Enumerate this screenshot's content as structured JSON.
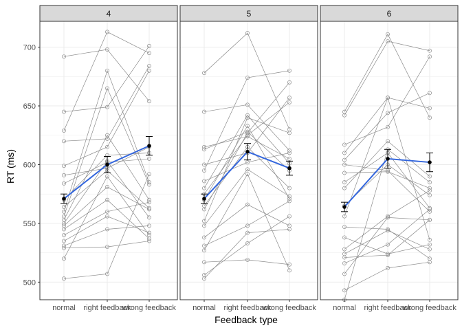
{
  "chart_data": {
    "type": "line",
    "facet_by": "number of items",
    "xlabel": "Feedback type",
    "ylabel": "RT (ms)",
    "categories": [
      "normal",
      "right feedback",
      "wrong feedback"
    ],
    "ylim": [
      485,
      722
    ],
    "yticks": [
      500,
      550,
      600,
      650,
      700
    ],
    "grid": true,
    "legend": "none",
    "colors": {
      "individual": "#8c8c8c",
      "mean_line": "#3366dd",
      "mean_point": "#000000",
      "strip_bg": "#d9d9d9",
      "grid": "#ebebeb"
    },
    "panels": [
      {
        "label": "4",
        "mean": {
          "values": [
            571,
            600,
            616
          ],
          "se": [
            4,
            7,
            8
          ]
        },
        "subjects": [
          [
            692,
            698,
            654
          ],
          [
            629,
            713,
            695
          ],
          [
            645,
            649,
            701
          ],
          [
            620,
            622,
            684
          ],
          [
            599,
            615,
            680
          ],
          [
            591,
            597,
            615
          ],
          [
            584,
            602,
            605
          ],
          [
            570,
            608,
            610
          ],
          [
            560,
            680,
            585
          ],
          [
            556,
            665,
            583
          ],
          [
            553,
            625,
            570
          ],
          [
            550,
            603,
            555
          ],
          [
            545,
            570,
            537
          ],
          [
            540,
            560,
            568
          ],
          [
            535,
            556,
            542
          ],
          [
            531,
            545,
            548
          ],
          [
            529,
            530,
            535
          ],
          [
            520,
            590,
            540
          ],
          [
            503,
            507,
            592
          ],
          [
            548,
            581,
            562
          ],
          [
            564,
            595,
            563
          ]
        ]
      },
      {
        "label": "5",
        "mean": {
          "values": [
            571,
            611,
            597
          ],
          "se": [
            4,
            7,
            6
          ]
        },
        "subjects": [
          [
            678,
            712,
            630
          ],
          [
            645,
            651,
            612
          ],
          [
            615,
            624,
            605
          ],
          [
            613,
            628,
            595
          ],
          [
            600,
            610,
            657
          ],
          [
            595,
            674,
            680
          ],
          [
            586,
            602,
            610
          ],
          [
            580,
            642,
            601
          ],
          [
            575,
            625,
            653
          ],
          [
            570,
            633,
            571
          ],
          [
            562,
            627,
            670
          ],
          [
            552,
            640,
            627
          ],
          [
            548,
            596,
            573
          ],
          [
            538,
            566,
            548
          ],
          [
            531,
            548,
            569
          ],
          [
            527,
            592,
            510
          ],
          [
            517,
            519,
            515
          ],
          [
            506,
            533,
            556
          ],
          [
            503,
            542,
            545
          ],
          [
            565,
            615,
            580
          ]
        ]
      },
      {
        "label": "6",
        "mean": {
          "values": [
            564,
            605,
            602
          ],
          "se": [
            4,
            8,
            8
          ]
        },
        "subjects": [
          [
            645,
            711,
            640
          ],
          [
            642,
            705,
            697
          ],
          [
            617,
            632,
            692
          ],
          [
            610,
            657,
            648
          ],
          [
            604,
            644,
            661
          ],
          [
            600,
            595,
            560
          ],
          [
            593,
            594,
            580
          ],
          [
            585,
            610,
            563
          ],
          [
            580,
            620,
            590
          ],
          [
            565,
            600,
            574
          ],
          [
            556,
            657,
            536
          ],
          [
            547,
            545,
            520
          ],
          [
            538,
            524,
            532
          ],
          [
            528,
            556,
            578
          ],
          [
            524,
            544,
            528
          ],
          [
            521,
            523,
            553
          ],
          [
            516,
            532,
            562
          ],
          [
            507,
            555,
            553
          ],
          [
            493,
            512,
            517
          ],
          [
            485,
            613,
            585
          ]
        ]
      }
    ]
  }
}
